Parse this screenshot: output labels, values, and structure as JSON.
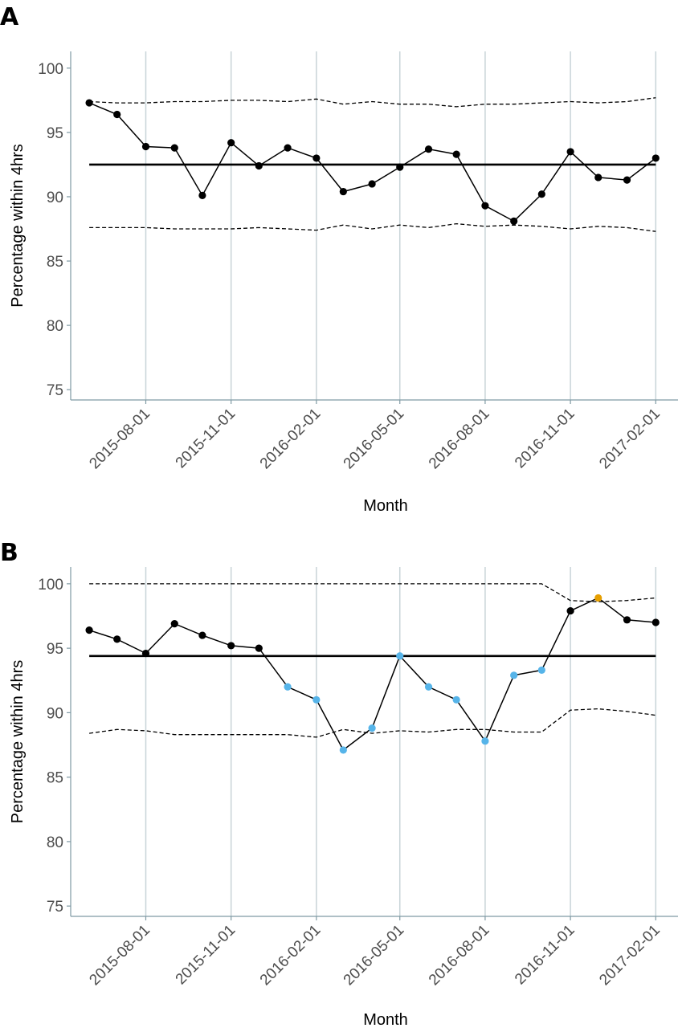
{
  "chart_data": [
    {
      "panel": "A",
      "type": "line",
      "xlabel": "Month",
      "ylabel": "Percentage within 4hrs",
      "ylim": [
        74.2,
        101.3
      ],
      "xlim": [
        "2015-05-12",
        "2017-02-25"
      ],
      "yticks": [
        75,
        80,
        85,
        90,
        95,
        100
      ],
      "xticks": [
        "2015-08-01",
        "2015-11-01",
        "2016-02-01",
        "2016-05-01",
        "2016-08-01",
        "2016-11-01",
        "2017-02-01"
      ],
      "grid": "vertical",
      "x": [
        "2015-06-01",
        "2015-07-01",
        "2015-08-01",
        "2015-09-01",
        "2015-10-01",
        "2015-11-01",
        "2015-12-01",
        "2016-01-01",
        "2016-02-01",
        "2016-03-01",
        "2016-04-01",
        "2016-05-01",
        "2016-06-01",
        "2016-07-01",
        "2016-08-01",
        "2016-09-01",
        "2016-10-01",
        "2016-11-01",
        "2016-12-01",
        "2017-01-01",
        "2017-02-01"
      ],
      "series": [
        {
          "role": "observed",
          "style": "solid-with-points",
          "values": [
            97.3,
            96.4,
            93.9,
            93.8,
            90.1,
            94.2,
            92.4,
            93.8,
            93.0,
            90.4,
            91.0,
            92.3,
            93.7,
            93.3,
            89.3,
            88.1,
            90.2,
            93.5,
            91.5,
            91.3,
            93.0
          ]
        },
        {
          "role": "centre",
          "style": "thick-solid",
          "values": [
            92.5,
            92.5,
            92.5,
            92.5,
            92.5,
            92.5,
            92.5,
            92.5,
            92.5,
            92.5,
            92.5,
            92.5,
            92.5,
            92.5,
            92.5,
            92.5,
            92.5,
            92.5,
            92.5,
            92.5,
            92.5
          ]
        },
        {
          "role": "upper",
          "style": "dashed",
          "values": [
            97.4,
            97.3,
            97.3,
            97.4,
            97.4,
            97.5,
            97.5,
            97.4,
            97.6,
            97.2,
            97.4,
            97.2,
            97.2,
            97.0,
            97.2,
            97.2,
            97.3,
            97.4,
            97.3,
            97.4,
            97.7
          ]
        },
        {
          "role": "lower",
          "style": "dashed",
          "values": [
            87.6,
            87.6,
            87.6,
            87.5,
            87.5,
            87.5,
            87.6,
            87.5,
            87.4,
            87.8,
            87.5,
            87.8,
            87.6,
            87.9,
            87.7,
            87.8,
            87.7,
            87.5,
            87.7,
            87.6,
            87.3
          ]
        }
      ],
      "point_colors": [
        "#000000",
        "#000000",
        "#000000",
        "#000000",
        "#000000",
        "#000000",
        "#000000",
        "#000000",
        "#000000",
        "#000000",
        "#000000",
        "#000000",
        "#000000",
        "#000000",
        "#000000",
        "#000000",
        "#000000",
        "#000000",
        "#000000",
        "#000000",
        "#000000"
      ]
    },
    {
      "panel": "B",
      "type": "line",
      "xlabel": "Month",
      "ylabel": "Percentage within 4hrs",
      "ylim": [
        74.2,
        101.3
      ],
      "xlim": [
        "2015-05-12",
        "2017-02-25"
      ],
      "yticks": [
        75,
        80,
        85,
        90,
        95,
        100
      ],
      "xticks": [
        "2015-08-01",
        "2015-11-01",
        "2016-02-01",
        "2016-05-01",
        "2016-08-01",
        "2016-11-01",
        "2017-02-01"
      ],
      "grid": "vertical",
      "x": [
        "2015-06-01",
        "2015-07-01",
        "2015-08-01",
        "2015-09-01",
        "2015-10-01",
        "2015-11-01",
        "2015-12-01",
        "2016-01-01",
        "2016-02-01",
        "2016-03-01",
        "2016-04-01",
        "2016-05-01",
        "2016-06-01",
        "2016-07-01",
        "2016-08-01",
        "2016-09-01",
        "2016-10-01",
        "2016-11-01",
        "2016-12-01",
        "2017-01-01",
        "2017-02-01"
      ],
      "series": [
        {
          "role": "observed",
          "style": "solid-with-points",
          "values": [
            96.4,
            95.7,
            94.6,
            96.9,
            96.0,
            95.2,
            95.0,
            92.0,
            91.0,
            87.1,
            88.8,
            94.4,
            92.0,
            91.0,
            87.8,
            92.9,
            93.3,
            97.9,
            98.9,
            97.2,
            97.0
          ]
        },
        {
          "role": "centre",
          "style": "thick-solid",
          "values": [
            94.4,
            94.4,
            94.4,
            94.4,
            94.4,
            94.4,
            94.4,
            94.4,
            94.4,
            94.4,
            94.4,
            94.4,
            94.4,
            94.4,
            94.4,
            94.4,
            94.4,
            94.4,
            94.4,
            94.4,
            94.4
          ]
        },
        {
          "role": "upper",
          "style": "dashed",
          "values": [
            100.0,
            100.0,
            100.0,
            100.0,
            100.0,
            100.0,
            100.0,
            100.0,
            100.0,
            100.0,
            100.0,
            100.0,
            100.0,
            100.0,
            100.0,
            100.0,
            100.0,
            98.7,
            98.6,
            98.7,
            98.9
          ]
        },
        {
          "role": "lower",
          "style": "dashed",
          "values": [
            88.4,
            88.7,
            88.6,
            88.3,
            88.3,
            88.3,
            88.3,
            88.3,
            88.1,
            88.7,
            88.4,
            88.6,
            88.5,
            88.7,
            88.7,
            88.5,
            88.5,
            90.2,
            90.3,
            90.1,
            89.8
          ]
        }
      ],
      "point_colors": [
        "#000000",
        "#000000",
        "#000000",
        "#000000",
        "#000000",
        "#000000",
        "#000000",
        "#56b4e9",
        "#56b4e9",
        "#56b4e9",
        "#56b4e9",
        "#56b4e9",
        "#56b4e9",
        "#56b4e9",
        "#56b4e9",
        "#56b4e9",
        "#56b4e9",
        "#000000",
        "#e69f00",
        "#000000",
        "#000000"
      ]
    }
  ],
  "colors": {
    "grid": "#c8d4d8",
    "axis": "#7f9aa4",
    "special_cause_low": "#56b4e9",
    "special_cause_high": "#e69f00"
  }
}
